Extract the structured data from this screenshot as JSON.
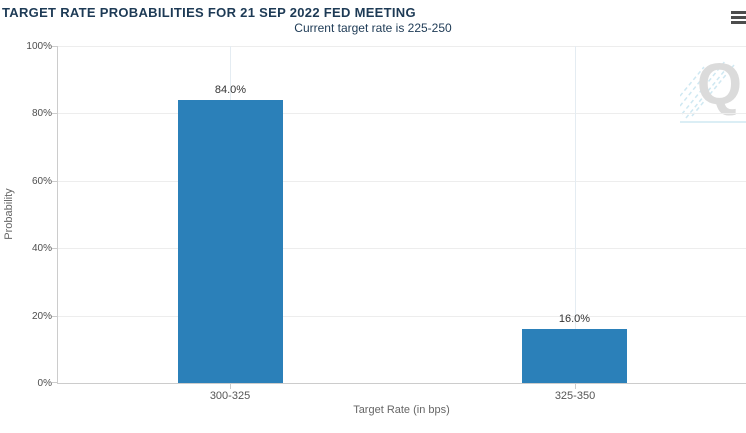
{
  "header": {
    "menu_icon": "hamburger-menu"
  },
  "watermark": {
    "letter": "Q"
  },
  "chart_data": {
    "type": "bar",
    "title": "TARGET RATE PROBABILITIES FOR 21 SEP 2022 FED MEETING",
    "subtitle": "Current target rate is 225-250",
    "categories": [
      "300-325",
      "325-350"
    ],
    "values": [
      84.0,
      16.0
    ],
    "value_labels": [
      "84.0%",
      "16.0%"
    ],
    "xlabel": "Target Rate (in bps)",
    "ylabel": "Probability",
    "ylim": [
      0,
      100
    ],
    "yticks": [
      {
        "v": 0,
        "label": "0%"
      },
      {
        "v": 20,
        "label": "20%"
      },
      {
        "v": 40,
        "label": "40%"
      },
      {
        "v": 60,
        "label": "60%"
      },
      {
        "v": 80,
        "label": "80%"
      },
      {
        "v": 100,
        "label": "100%"
      }
    ],
    "grid": true,
    "legend_position": "none",
    "bar_color": "#2b80b9",
    "title_color": "#1d3a55",
    "axis_line_color": "#cccccc",
    "gridline_color": "#ededed"
  }
}
